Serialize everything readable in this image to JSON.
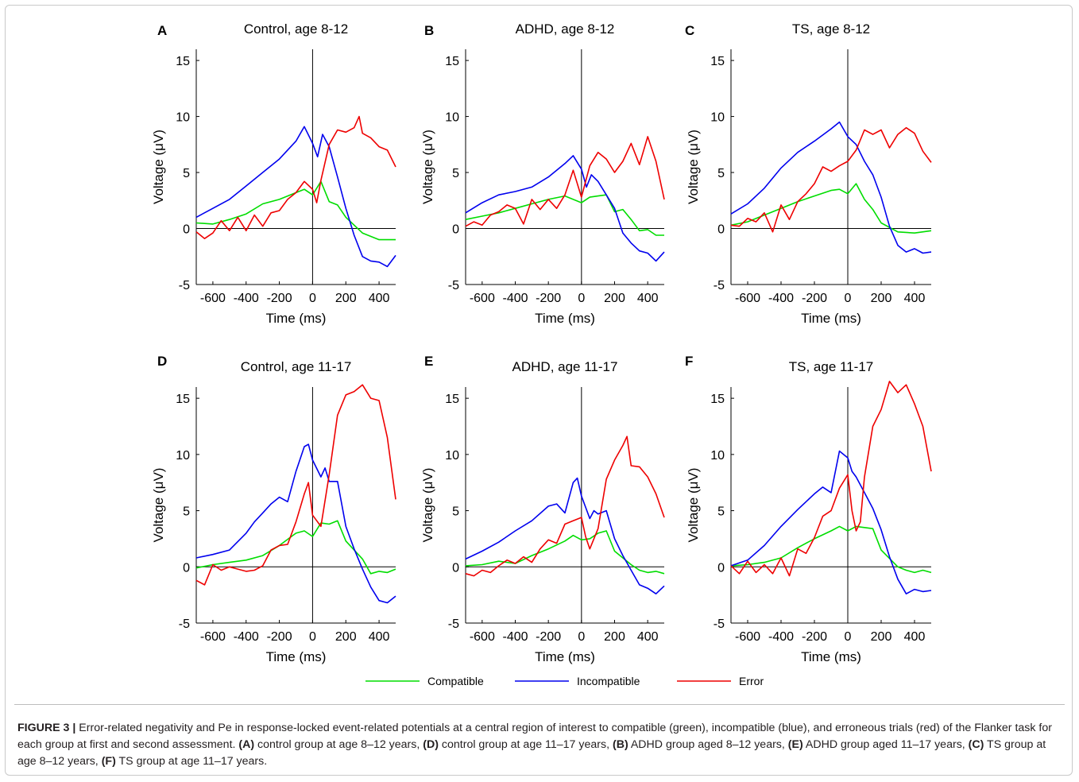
{
  "figure": {
    "panels": [
      "A",
      "B",
      "C",
      "D",
      "E",
      "F"
    ]
  },
  "chart_data": [
    {
      "panel": "A",
      "title": "Control, age 8-12",
      "type": "line",
      "xlabel": "Time (ms)",
      "ylabel": "Voltage (μV)",
      "xlim": [
        -700,
        500
      ],
      "ylim": [
        -5,
        16
      ],
      "xticks": [
        -600,
        -400,
        -200,
        0,
        200,
        400
      ],
      "yticks": [
        -5,
        0,
        5,
        10,
        15
      ],
      "series": [
        {
          "name": "Compatible",
          "color": "#00dd00",
          "x": [
            -700,
            -600,
            -500,
            -400,
            -300,
            -200,
            -100,
            -50,
            0,
            50,
            100,
            150,
            200,
            300,
            400,
            500
          ],
          "y": [
            0.5,
            0.4,
            0.8,
            1.3,
            2.2,
            2.6,
            3.2,
            3.5,
            3.0,
            4.2,
            2.4,
            2.1,
            1.0,
            -0.4,
            -1.0,
            -1.0
          ]
        },
        {
          "name": "Incompatible",
          "color": "#0000ee",
          "x": [
            -700,
            -600,
            -500,
            -400,
            -300,
            -200,
            -100,
            -50,
            0,
            30,
            60,
            100,
            150,
            200,
            250,
            300,
            350,
            400,
            450,
            500
          ],
          "y": [
            1.0,
            1.8,
            2.6,
            3.8,
            5.0,
            6.2,
            7.8,
            9.1,
            7.6,
            6.4,
            8.4,
            7.3,
            4.6,
            1.8,
            -0.6,
            -2.5,
            -2.9,
            -3.0,
            -3.4,
            -2.4
          ]
        },
        {
          "name": "Error",
          "color": "#ee0000",
          "x": [
            -700,
            -650,
            -600,
            -550,
            -500,
            -450,
            -400,
            -350,
            -300,
            -250,
            -200,
            -150,
            -100,
            -50,
            0,
            25,
            50,
            100,
            150,
            200,
            250,
            280,
            300,
            350,
            400,
            450,
            500
          ],
          "y": [
            -0.3,
            -0.9,
            -0.4,
            0.7,
            -0.2,
            1.0,
            -0.2,
            1.2,
            0.2,
            1.4,
            1.6,
            2.6,
            3.2,
            4.2,
            3.5,
            2.3,
            4.3,
            7.5,
            8.8,
            8.6,
            9.0,
            10.0,
            8.5,
            8.1,
            7.3,
            7.0,
            5.5
          ]
        }
      ]
    },
    {
      "panel": "B",
      "title": "ADHD, age 8-12",
      "type": "line",
      "xlabel": "Time (ms)",
      "ylabel": "Voltage (μV)",
      "xlim": [
        -700,
        500
      ],
      "ylim": [
        -5,
        16
      ],
      "xticks": [
        -600,
        -400,
        -200,
        0,
        200,
        400
      ],
      "yticks": [
        -5,
        0,
        5,
        10,
        15
      ],
      "series": [
        {
          "name": "Compatible",
          "color": "#00dd00",
          "x": [
            -700,
            -600,
            -500,
            -400,
            -300,
            -200,
            -100,
            0,
            50,
            100,
            150,
            200,
            250,
            300,
            350,
            400,
            450,
            500
          ],
          "y": [
            0.8,
            1.1,
            1.4,
            1.8,
            2.2,
            2.6,
            2.9,
            2.3,
            2.8,
            2.9,
            3.0,
            1.5,
            1.7,
            0.8,
            -0.2,
            -0.1,
            -0.6,
            -0.6
          ]
        },
        {
          "name": "Incompatible",
          "color": "#0000ee",
          "x": [
            -700,
            -600,
            -500,
            -400,
            -300,
            -200,
            -100,
            -50,
            0,
            30,
            60,
            100,
            150,
            200,
            250,
            300,
            350,
            400,
            450,
            500
          ],
          "y": [
            1.4,
            2.3,
            3.0,
            3.3,
            3.7,
            4.6,
            5.8,
            6.5,
            5.3,
            3.7,
            4.8,
            4.2,
            3.0,
            1.8,
            -0.4,
            -1.3,
            -2.0,
            -2.2,
            -2.9,
            -2.1
          ]
        },
        {
          "name": "Error",
          "color": "#ee0000",
          "x": [
            -700,
            -650,
            -600,
            -550,
            -500,
            -450,
            -400,
            -350,
            -300,
            -250,
            -200,
            -150,
            -100,
            -50,
            0,
            50,
            100,
            150,
            200,
            250,
            300,
            350,
            400,
            450,
            500
          ],
          "y": [
            0.2,
            0.6,
            0.3,
            1.2,
            1.5,
            2.1,
            1.8,
            0.4,
            2.6,
            1.7,
            2.6,
            1.8,
            3.0,
            5.2,
            2.8,
            5.6,
            6.8,
            6.2,
            5.0,
            6.0,
            7.6,
            5.7,
            8.2,
            6.0,
            2.6
          ]
        }
      ]
    },
    {
      "panel": "C",
      "title": "TS, age 8-12",
      "type": "line",
      "xlabel": "Time (ms)",
      "ylabel": "Voltage (μV)",
      "xlim": [
        -700,
        500
      ],
      "ylim": [
        -5,
        16
      ],
      "xticks": [
        -600,
        -400,
        -200,
        0,
        200,
        400
      ],
      "yticks": [
        -5,
        0,
        5,
        10,
        15
      ],
      "series": [
        {
          "name": "Compatible",
          "color": "#00dd00",
          "x": [
            -700,
            -600,
            -500,
            -400,
            -300,
            -200,
            -100,
            -50,
            0,
            50,
            100,
            150,
            200,
            300,
            400,
            500
          ],
          "y": [
            0.3,
            0.6,
            1.2,
            1.8,
            2.4,
            2.9,
            3.4,
            3.5,
            3.1,
            4.0,
            2.6,
            1.7,
            0.5,
            -0.3,
            -0.4,
            -0.2
          ]
        },
        {
          "name": "Incompatible",
          "color": "#0000ee",
          "x": [
            -700,
            -600,
            -500,
            -400,
            -300,
            -200,
            -100,
            -50,
            0,
            50,
            100,
            150,
            200,
            250,
            300,
            350,
            400,
            450,
            500
          ],
          "y": [
            1.3,
            2.2,
            3.6,
            5.4,
            6.8,
            7.8,
            8.9,
            9.5,
            8.2,
            7.5,
            6.0,
            4.8,
            2.8,
            0.2,
            -1.5,
            -2.1,
            -1.8,
            -2.2,
            -2.1
          ]
        },
        {
          "name": "Error",
          "color": "#ee0000",
          "x": [
            -700,
            -650,
            -600,
            -550,
            -500,
            -450,
            -400,
            -350,
            -300,
            -250,
            -200,
            -150,
            -100,
            -50,
            0,
            50,
            100,
            150,
            200,
            250,
            300,
            350,
            400,
            450,
            500
          ],
          "y": [
            0.3,
            0.2,
            0.9,
            0.6,
            1.4,
            -0.3,
            2.1,
            0.8,
            2.4,
            3.1,
            4.0,
            5.5,
            5.1,
            5.6,
            6.0,
            7.0,
            8.8,
            8.4,
            8.8,
            7.2,
            8.4,
            9.0,
            8.5,
            6.9,
            5.9
          ]
        }
      ]
    },
    {
      "panel": "D",
      "title": "Control, age 11-17",
      "type": "line",
      "xlabel": "Time (ms)",
      "ylabel": "Voltage (μV)",
      "xlim": [
        -700,
        500
      ],
      "ylim": [
        -5,
        16
      ],
      "xticks": [
        -600,
        -400,
        -200,
        0,
        200,
        400
      ],
      "yticks": [
        -5,
        0,
        5,
        10,
        15
      ],
      "series": [
        {
          "name": "Compatible",
          "color": "#00dd00",
          "x": [
            -700,
            -600,
            -500,
            -400,
            -300,
            -200,
            -100,
            -50,
            0,
            50,
            100,
            150,
            200,
            300,
            350,
            400,
            450,
            500
          ],
          "y": [
            -0.1,
            0.2,
            0.4,
            0.6,
            1.0,
            1.9,
            3.0,
            3.2,
            2.7,
            3.9,
            3.8,
            4.1,
            2.3,
            0.7,
            -0.6,
            -0.4,
            -0.5,
            -0.2
          ]
        },
        {
          "name": "Incompatible",
          "color": "#0000ee",
          "x": [
            -700,
            -600,
            -500,
            -400,
            -350,
            -300,
            -250,
            -200,
            -150,
            -100,
            -50,
            -25,
            0,
            50,
            75,
            100,
            150,
            200,
            250,
            300,
            350,
            400,
            450,
            500
          ],
          "y": [
            0.8,
            1.1,
            1.5,
            3.0,
            4.0,
            4.8,
            5.6,
            6.2,
            5.8,
            8.5,
            10.7,
            10.9,
            9.5,
            8.0,
            8.8,
            7.6,
            7.6,
            3.6,
            1.6,
            -0.2,
            -1.8,
            -3.0,
            -3.2,
            -2.6
          ]
        },
        {
          "name": "Error",
          "color": "#ee0000",
          "x": [
            -700,
            -650,
            -600,
            -550,
            -500,
            -450,
            -400,
            -350,
            -300,
            -250,
            -200,
            -150,
            -100,
            -50,
            -25,
            0,
            50,
            100,
            150,
            200,
            250,
            300,
            350,
            400,
            450,
            500
          ],
          "y": [
            -1.2,
            -1.6,
            0.2,
            -0.3,
            0.0,
            -0.2,
            -0.4,
            -0.3,
            0.1,
            1.5,
            1.9,
            2.0,
            4.0,
            6.5,
            7.5,
            4.6,
            3.6,
            8.2,
            13.5,
            15.3,
            15.6,
            16.2,
            15.0,
            14.8,
            11.5,
            6.0
          ]
        }
      ]
    },
    {
      "panel": "E",
      "title": "ADHD, age  11-17",
      "type": "line",
      "xlabel": "Time (ms)",
      "ylabel": "Voltage (μV)",
      "xlim": [
        -700,
        500
      ],
      "ylim": [
        -5,
        16
      ],
      "xticks": [
        -600,
        -400,
        -200,
        0,
        200,
        400
      ],
      "yticks": [
        -5,
        0,
        5,
        10,
        15
      ],
      "series": [
        {
          "name": "Compatible",
          "color": "#00dd00",
          "x": [
            -700,
            -600,
            -500,
            -400,
            -300,
            -200,
            -100,
            -50,
            0,
            50,
            100,
            150,
            200,
            300,
            350,
            400,
            450,
            500
          ],
          "y": [
            0.1,
            0.2,
            0.5,
            0.3,
            1.0,
            1.6,
            2.3,
            2.8,
            2.4,
            2.5,
            3.0,
            3.2,
            1.4,
            0.2,
            -0.3,
            -0.5,
            -0.4,
            -0.6
          ]
        },
        {
          "name": "Incompatible",
          "color": "#0000ee",
          "x": [
            -700,
            -600,
            -500,
            -400,
            -300,
            -200,
            -150,
            -100,
            -50,
            -25,
            0,
            50,
            75,
            100,
            150,
            200,
            250,
            300,
            350,
            400,
            450,
            500
          ],
          "y": [
            0.7,
            1.4,
            2.2,
            3.2,
            4.1,
            5.4,
            5.6,
            4.8,
            7.5,
            7.9,
            6.3,
            4.3,
            5.0,
            4.7,
            5.0,
            2.5,
            1.0,
            -0.3,
            -1.6,
            -1.9,
            -2.4,
            -1.7
          ]
        },
        {
          "name": "Error",
          "color": "#ee0000",
          "x": [
            -700,
            -650,
            -600,
            -550,
            -500,
            -450,
            -400,
            -350,
            -300,
            -250,
            -200,
            -150,
            -100,
            -50,
            0,
            25,
            50,
            100,
            150,
            200,
            250,
            275,
            300,
            350,
            400,
            450,
            500
          ],
          "y": [
            -0.6,
            -0.8,
            -0.3,
            -0.5,
            0.1,
            0.6,
            0.3,
            0.9,
            0.4,
            1.6,
            2.4,
            2.1,
            3.8,
            4.1,
            4.4,
            2.7,
            1.6,
            3.4,
            7.8,
            9.5,
            10.8,
            11.6,
            9.0,
            8.9,
            8.0,
            6.5,
            4.4
          ]
        }
      ]
    },
    {
      "panel": "F",
      "title": "TS, age 11-17",
      "type": "line",
      "xlabel": "Time (ms)",
      "ylabel": "Voltage (μV)",
      "xlim": [
        -700,
        500
      ],
      "ylim": [
        -5,
        16
      ],
      "xticks": [
        -600,
        -400,
        -200,
        0,
        200,
        400
      ],
      "yticks": [
        -5,
        0,
        5,
        10,
        15
      ],
      "series": [
        {
          "name": "Compatible",
          "color": "#00dd00",
          "x": [
            -700,
            -600,
            -500,
            -400,
            -300,
            -200,
            -100,
            -50,
            0,
            50,
            100,
            150,
            200,
            300,
            350,
            400,
            450,
            500
          ],
          "y": [
            0.1,
            0.2,
            0.4,
            0.8,
            1.7,
            2.5,
            3.2,
            3.6,
            3.2,
            3.6,
            3.5,
            3.4,
            1.5,
            0.0,
            -0.3,
            -0.5,
            -0.3,
            -0.5
          ]
        },
        {
          "name": "Incompatible",
          "color": "#0000ee",
          "x": [
            -700,
            -600,
            -500,
            -400,
            -300,
            -200,
            -150,
            -100,
            -50,
            0,
            25,
            50,
            100,
            150,
            200,
            250,
            300,
            350,
            400,
            450,
            500
          ],
          "y": [
            0.1,
            0.6,
            1.9,
            3.6,
            5.1,
            6.5,
            7.1,
            6.6,
            10.3,
            9.7,
            8.5,
            8.0,
            6.6,
            5.2,
            3.3,
            0.9,
            -1.1,
            -2.4,
            -2.0,
            -2.2,
            -2.1
          ]
        },
        {
          "name": "Error",
          "color": "#ee0000",
          "x": [
            -700,
            -650,
            -600,
            -550,
            -500,
            -450,
            -400,
            -350,
            -300,
            -250,
            -200,
            -150,
            -100,
            -50,
            0,
            25,
            50,
            75,
            100,
            150,
            200,
            250,
            300,
            350,
            400,
            450,
            500
          ],
          "y": [
            0.1,
            -0.6,
            0.5,
            -0.5,
            0.2,
            -0.6,
            0.8,
            -0.8,
            1.6,
            1.2,
            2.6,
            4.5,
            5.0,
            7.0,
            8.2,
            5.0,
            3.2,
            4.0,
            8.0,
            12.5,
            14.0,
            16.5,
            15.5,
            16.2,
            14.5,
            12.5,
            8.5
          ]
        }
      ]
    }
  ],
  "legend": {
    "placement": "bottom-center",
    "items": [
      {
        "label": "Compatible",
        "color": "#00dd00"
      },
      {
        "label": "Incompatible",
        "color": "#0000ee"
      },
      {
        "label": "Error",
        "color": "#ee0000"
      }
    ]
  },
  "caption": {
    "figure_label": "FIGURE 3 |",
    "text_1": " Error-related negativity and Pe in response-locked event-related potentials at a central region of interest to compatible (green), incompatible (blue), and erroneous trials (red) of the Flanker task for each group at first and second assessment. ",
    "label_a": "(A)",
    "text_a": " control group at age 8–12 years, ",
    "label_d": "(D)",
    "text_d": " control group at age 11–17 years, ",
    "label_b": "(B)",
    "text_b": " ADHD group aged 8–12 years, ",
    "label_e": "(E)",
    "text_e": " ADHD group aged 11–17 years, ",
    "label_c": "(C)",
    "text_c": " TS group at age 8–12 years, ",
    "label_f": "(F)",
    "text_f": " TS group at age 11–17 years."
  }
}
